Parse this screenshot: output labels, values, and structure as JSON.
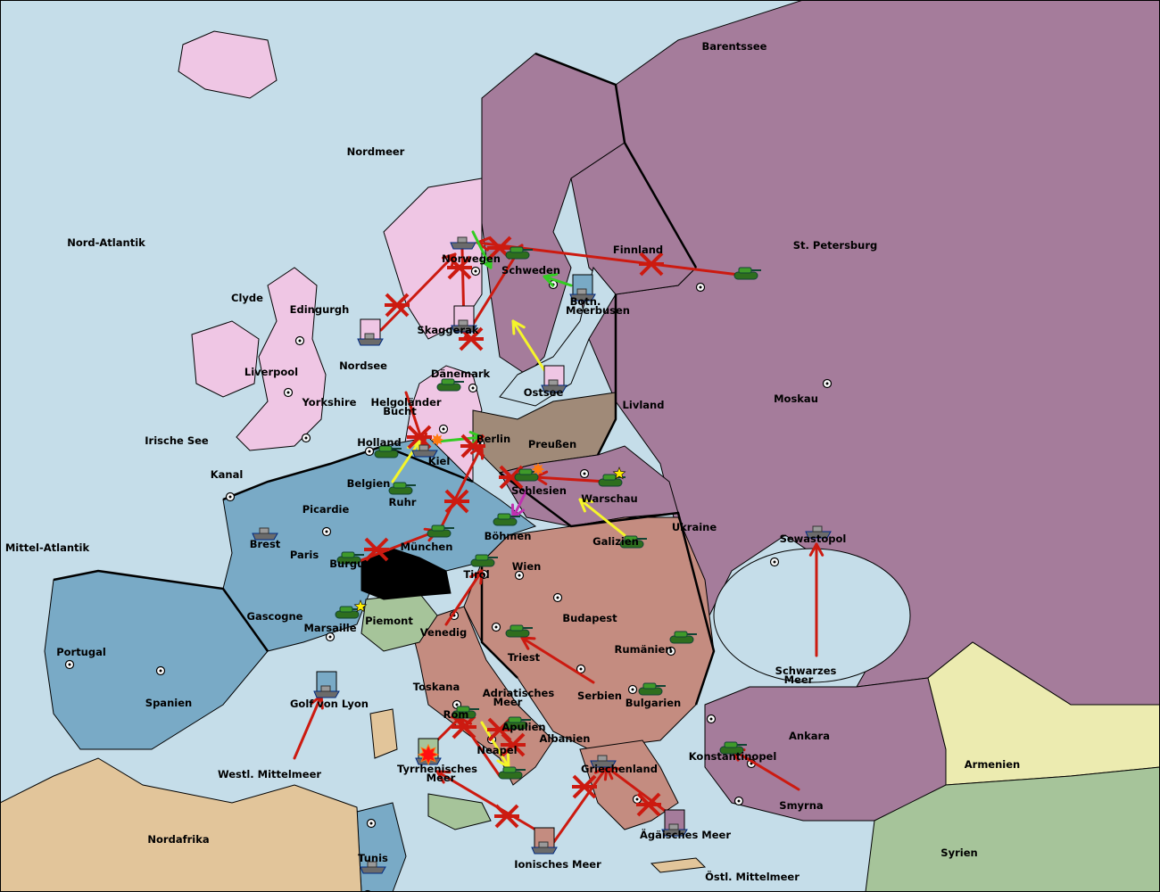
{
  "colors": {
    "sea": "#c5dde9",
    "russia_turkey": "#a57c9b",
    "england": "#efc6e4",
    "france": "#79aac6",
    "austria_italy": "#c48c80",
    "germany": "#a08a78",
    "neutral_green": "#a6c49a",
    "neutral_yellow": "#ecebb0",
    "neutral_tan": "#e2c59a",
    "switzerland": "#000000",
    "army_unit": "#3f9a2a",
    "fleet_unit": "#6b6b6b",
    "order_failed": "#cc1a10",
    "order_support": "#f5f52a",
    "order_convoy": "#33cc22",
    "order_retreat": "#c030b0",
    "supply_center_marker": "#ffffff",
    "star": "#ffee00"
  },
  "icons": {
    "army": "tank-icon",
    "fleet": "ship-icon",
    "supply_center": "supply-center-icon",
    "failed_order": "cross-icon",
    "battle": "explosion-icon",
    "star": "star-icon"
  },
  "labels": [
    "Barentssee",
    "Nordmeer",
    "Nord-Atlantik",
    "St. Petersburg",
    "Finnland",
    "Norwegen",
    "Schweden",
    "Clyde",
    "Edingurgh",
    "Botn.",
    "Meerbusen",
    "Skaggerak",
    "Nordsee",
    "Liverpool",
    "Dänemark",
    "Ostsee",
    "Livland",
    "Moskau",
    "Yorkshire",
    "Helgoländer",
    "Bucht",
    "Irische See",
    "Holland",
    "Berlin",
    "Preußen",
    "Kiel",
    "Kanal",
    "Belgien",
    "Schlesien",
    "Warschau",
    "Ruhr",
    "Picardie",
    "Ukraine",
    "Brest",
    "Böhmen",
    "Galizien",
    "Sewastopol",
    "Mittel-Atlantik",
    "Paris",
    "München",
    "Burgund",
    "Wien",
    "Tirol",
    "Gascogne",
    "Budapest",
    "Piemont",
    "Marsaille",
    "Venedig",
    "Rumänien",
    "Portugal",
    "Triest",
    "Schwarzes",
    "Meer",
    "Toskana",
    "Adriatisches",
    "Meer",
    "Serbien",
    "Spanien",
    "Golf von Lyon",
    "Bulgarien",
    "Rom",
    "Apulien",
    "Ankara",
    "Albanien",
    "Neapel",
    "Konstantinopel",
    "Armenien",
    "Griechenland",
    "Tyrrhenisches",
    "Meer",
    "Westl. Mittelmeer",
    "Smyrna",
    "Nordafrika",
    "Ägäisches Meer",
    "Syrien",
    "Tunis",
    "Ionisches Meer",
    "Östl. Mittelmeer"
  ]
}
